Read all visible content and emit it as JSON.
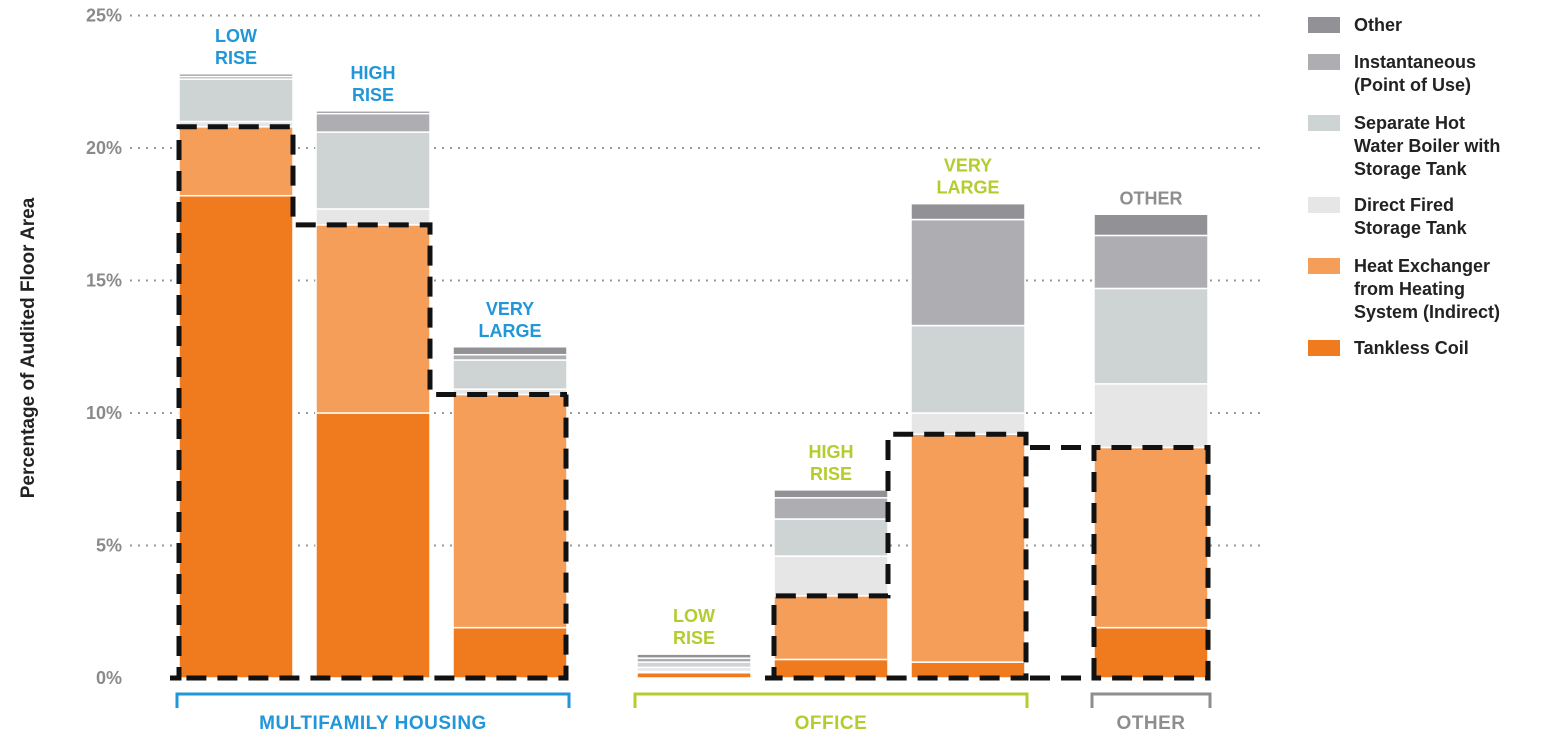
{
  "chart_data": {
    "type": "bar",
    "stacked": true,
    "ylabel": "Percentage of Audited Floor Area",
    "ylim": [
      0,
      25
    ],
    "yticks": [
      0,
      5,
      10,
      15,
      20,
      25
    ],
    "ytick_labels": [
      "0%",
      "5%",
      "10%",
      "15%",
      "20%",
      "25%"
    ],
    "grid": "horizontal-dotted",
    "legend_position": "right",
    "series": [
      {
        "name": "Tankless Coil",
        "color": "#f07b1e"
      },
      {
        "name": "Heat Exchanger from Heating System (Indirect)",
        "color": "#f59e5a"
      },
      {
        "name": "Direct Fired Storage Tank",
        "color": "#e6e6e6"
      },
      {
        "name": "Separate Hot Water Boiler with Storage Tank",
        "color": "#ced3d3"
      },
      {
        "name": "Instantaneous (Point of Use)",
        "color": "#aeaeb2"
      },
      {
        "name": "Other",
        "color": "#929296"
      }
    ],
    "legend_entries": [
      {
        "lines": [
          "Other"
        ],
        "color": "#929296"
      },
      {
        "lines": [
          "Instantaneous",
          "(Point of Use)"
        ],
        "color": "#aeaeb2"
      },
      {
        "lines": [
          "Separate Hot",
          "Water Boiler with",
          "Storage Tank"
        ],
        "color": "#ced3d3"
      },
      {
        "lines": [
          "Direct Fired",
          "Storage Tank"
        ],
        "color": "#e6e6e6"
      },
      {
        "lines": [
          "Heat Exchanger",
          "from Heating",
          "System (Indirect)"
        ],
        "color": "#f59e5a"
      },
      {
        "lines": [
          "Tankless Coil"
        ],
        "color": "#f07b1e"
      }
    ],
    "groups": [
      {
        "label": "MULTIFAMILY HOUSING",
        "color": "#2196d8"
      },
      {
        "label": "OFFICE",
        "color": "#b5cc2e"
      },
      {
        "label": "OTHER",
        "color": "#8e8e8e"
      }
    ],
    "bars": [
      {
        "label": [
          "LOW",
          "RISE"
        ],
        "group": 0,
        "values": [
          18.2,
          2.6,
          0.2,
          1.6,
          0.1,
          0.1
        ]
      },
      {
        "label": [
          "HIGH",
          "RISE"
        ],
        "group": 0,
        "values": [
          10.0,
          7.1,
          0.6,
          2.9,
          0.7,
          0.1
        ]
      },
      {
        "label": [
          "VERY",
          "LARGE"
        ],
        "group": 0,
        "values": [
          1.9,
          8.8,
          0.2,
          1.1,
          0.2,
          0.3
        ]
      },
      {
        "label": [
          "LOW",
          "RISE"
        ],
        "group": 1,
        "values": [
          0.2,
          0.05,
          0.15,
          0.2,
          0.15,
          0.15
        ]
      },
      {
        "label": [
          "HIGH",
          "RISE"
        ],
        "group": 1,
        "values": [
          0.7,
          2.4,
          1.5,
          1.4,
          0.8,
          0.3
        ]
      },
      {
        "label": [
          "VERY",
          "LARGE"
        ],
        "group": 1,
        "values": [
          0.6,
          8.6,
          0.8,
          3.3,
          4.0,
          0.6
        ]
      },
      {
        "label": [
          "OTHER"
        ],
        "group": 2,
        "values": [
          1.9,
          6.8,
          2.4,
          3.6,
          2.0,
          0.8
        ]
      }
    ]
  }
}
